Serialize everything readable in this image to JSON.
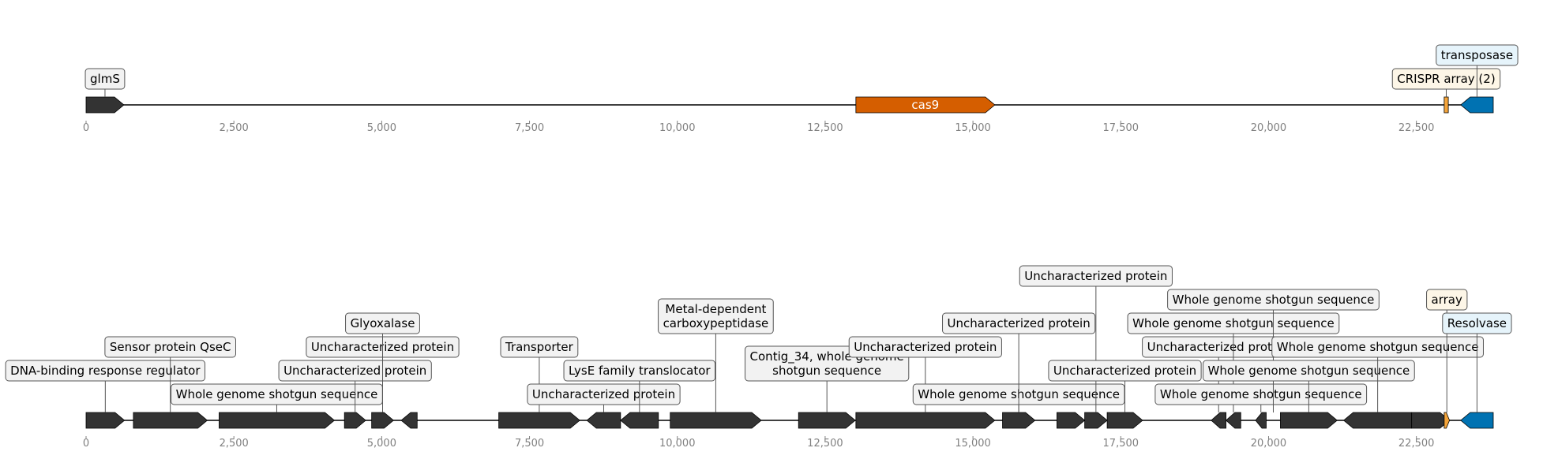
{
  "colors": {
    "gene": "#333333",
    "cas9": "#d55e00",
    "crispr": "#f4a43a",
    "transposase": "#0072b2",
    "box_default": "#f2f2f2",
    "box_crispr": "#fdf6e7",
    "box_transposase": "#e6f4fb",
    "axis_text": "#808080"
  },
  "axis": {
    "min": 0,
    "max": 23800,
    "ticks": [
      0,
      2500,
      5000,
      7500,
      10000,
      12500,
      15000,
      17500,
      20000,
      22500
    ]
  },
  "tracks": [
    {
      "name": "top-track",
      "span": [
        0,
        23800
      ],
      "features": [
        {
          "start": 0,
          "end": 640,
          "strand": 1,
          "color": "gene",
          "label": "glmS",
          "level": 0,
          "box": "box_default"
        },
        {
          "start": 13020,
          "end": 15370,
          "strand": 1,
          "color": "cas9",
          "inner_label": "cas9"
        },
        {
          "start": 22970,
          "end": 23040,
          "strand": 0,
          "color": "crispr",
          "label": "CRISPR array (2)",
          "level": 0,
          "box": "box_crispr"
        },
        {
          "start": 23250,
          "end": 23800,
          "strand": -1,
          "color": "transposase",
          "label": "transposase",
          "level": 1,
          "box": "box_transposase"
        }
      ]
    },
    {
      "name": "bottom-track",
      "span": [
        0,
        23800
      ],
      "features": [
        {
          "start": 0,
          "end": 650,
          "strand": 1,
          "color": "gene",
          "label": "DNA-binding response regulator",
          "level": 1,
          "box": "box_default"
        },
        {
          "start": 800,
          "end": 2050,
          "strand": 1,
          "color": "gene",
          "label": "Sensor protein QseC",
          "level": 2,
          "box": "box_default"
        },
        {
          "start": 2250,
          "end": 4200,
          "strand": 1,
          "color": "gene",
          "label": "Whole genome shotgun sequence",
          "level": 0,
          "box": "box_default"
        },
        {
          "start": 4370,
          "end": 4730,
          "strand": 1,
          "color": "gene",
          "label": "Uncharacterized protein",
          "level": 1,
          "box": "box_default"
        },
        {
          "start": 4830,
          "end": 5200,
          "strand": 1,
          "color": "gene",
          "label": "Uncharacterized protein",
          "level": 2,
          "box": "box_default"
        },
        {
          "start": 4830,
          "end": 5200,
          "strand": 1,
          "color": "gene",
          "label": "Glyoxalase",
          "level": 3,
          "box": "box_default",
          "hide_shape": true
        },
        {
          "start": 5330,
          "end": 5600,
          "strand": -1,
          "color": "gene",
          "label": "",
          "level": 0,
          "box": "box_default"
        },
        {
          "start": 6980,
          "end": 8350,
          "strand": 1,
          "color": "gene",
          "label": "Transporter",
          "level": 2,
          "box": "box_default"
        },
        {
          "start": 8470,
          "end": 9040,
          "strand": -1,
          "color": "gene",
          "label": "Uncharacterized protein",
          "level": 0,
          "box": "box_default"
        },
        {
          "start": 9040,
          "end": 9680,
          "strand": -1,
          "color": "gene",
          "label": "LysE family translocator",
          "level": 1,
          "box": "box_default"
        },
        {
          "start": 9880,
          "end": 11420,
          "strand": 1,
          "color": "gene",
          "label": "Metal-dependent\ncarboxypeptidase",
          "level": 3,
          "box": "box_default"
        },
        {
          "start": 12050,
          "end": 13010,
          "strand": 1,
          "color": "gene",
          "label": "Contig_34, whole genome\nshotgun sequence",
          "level": 1,
          "box": "box_default"
        },
        {
          "start": 13020,
          "end": 15370,
          "strand": 1,
          "color": "gene",
          "label": "Uncharacterized protein",
          "level": 2,
          "box": "box_default"
        },
        {
          "start": 15500,
          "end": 16050,
          "strand": 1,
          "color": "gene",
          "label": "Whole genome shotgun sequence",
          "level": 0,
          "box": "box_default"
        },
        {
          "start": 15500,
          "end": 16050,
          "strand": 1,
          "color": "gene",
          "label": "Uncharacterized protein",
          "level": 3,
          "box": "box_default",
          "hide_shape": true
        },
        {
          "start": 16420,
          "end": 16890,
          "strand": 1,
          "color": "gene",
          "label": "",
          "level": 0,
          "box": "box_default"
        },
        {
          "start": 16890,
          "end": 17270,
          "strand": 1,
          "color": "gene",
          "label": "Uncharacterized protein",
          "level": 5,
          "box": "box_default"
        },
        {
          "start": 17270,
          "end": 17870,
          "strand": 1,
          "color": "gene",
          "label": "Uncharacterized protein",
          "level": 1,
          "box": "box_default"
        },
        {
          "start": 19030,
          "end": 19280,
          "strand": -1,
          "color": "gene",
          "label": "Uncharacterized protein",
          "level": 2,
          "box": "box_default"
        },
        {
          "start": 19280,
          "end": 19530,
          "strand": -1,
          "color": "gene",
          "label": "Whole genome shotgun sequence",
          "level": 3,
          "box": "box_default"
        },
        {
          "start": 19780,
          "end": 19960,
          "strand": -1,
          "color": "gene",
          "label": "Whole genome shotgun sequence",
          "level": 0,
          "box": "box_default"
        },
        {
          "start": 19960,
          "end": 20200,
          "strand": -1,
          "color": "gene",
          "label": "Whole genome shotgun sequence",
          "level": 4,
          "box": "box_default",
          "hide_shape": true
        },
        {
          "start": 20200,
          "end": 21160,
          "strand": 1,
          "color": "gene",
          "label": "Whole genome shotgun sequence",
          "level": 1,
          "box": "box_default"
        },
        {
          "start": 21270,
          "end": 22420,
          "strand": -1,
          "color": "gene",
          "label": "Whole genome shotgun sequence",
          "level": 2,
          "box": "box_default"
        },
        {
          "start": 22420,
          "end": 23060,
          "strand": 1,
          "color": "gene",
          "label": "",
          "level": 0,
          "box": "box_default"
        },
        {
          "start": 22970,
          "end": 23060,
          "strand": 1,
          "color": "crispr",
          "label": "array",
          "level": 4,
          "box": "box_crispr"
        },
        {
          "start": 23250,
          "end": 23800,
          "strand": -1,
          "color": "transposase",
          "label": "Resolvase",
          "level": 3,
          "box": "box_transposase"
        }
      ]
    }
  ]
}
